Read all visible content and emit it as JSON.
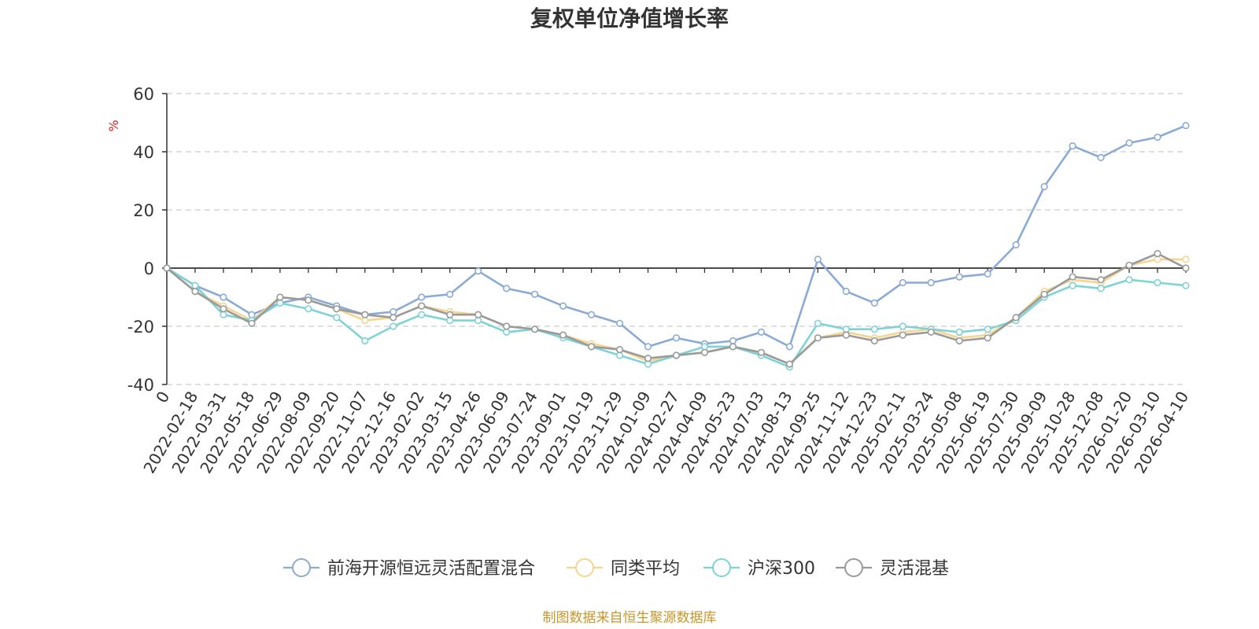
{
  "chart_data": {
    "type": "line",
    "title": "复权单位净值增长率",
    "ylabel": "%",
    "ylim": [
      -40,
      60
    ],
    "yticks": [
      -40,
      -20,
      0,
      20,
      40,
      60
    ],
    "grid": true,
    "legend_position": "bottom",
    "source": "制图数据来自恒生聚源数据库",
    "x": [
      "0",
      "2022-02-18",
      "2022-03-31",
      "2022-05-18",
      "2022-06-29",
      "2022-08-09",
      "2022-09-20",
      "2022-11-07",
      "2022-12-16",
      "2023-02-02",
      "2023-03-15",
      "2023-04-26",
      "2023-06-09",
      "2023-07-24",
      "2023-09-01",
      "2023-10-19",
      "2023-11-29",
      "2024-01-09",
      "2024-02-27",
      "2024-04-09",
      "2024-05-23",
      "2024-07-03",
      "2024-08-13",
      "2024-09-25",
      "2024-11-12",
      "2024-12-23",
      "2025-02-11",
      "2025-03-24",
      "2025-05-08",
      "2025-06-19",
      "2025-07-30",
      "2025-09-09",
      "2025-10-28",
      "2025-12-08",
      "2026-01-20",
      "2026-03-10",
      "2026-04-10"
    ],
    "series": [
      {
        "name": "前海开源恒远灵活配置混合",
        "color": "#8aaad8",
        "values": [
          0,
          -6,
          -10,
          -16,
          -12,
          -10,
          -13,
          -16,
          -15,
          -10,
          -9,
          -1,
          -7,
          -9,
          -13,
          -16,
          -19,
          -27,
          -24,
          -26,
          -25,
          -22,
          -27,
          3,
          -8,
          -12,
          -5,
          -5,
          -3,
          -2,
          8,
          28,
          42,
          38,
          43,
          45,
          49
        ]
      },
      {
        "name": "同类平均",
        "color": "#f5d590",
        "values": [
          0,
          -8,
          -13,
          -18,
          -10,
          -11,
          -14,
          -18,
          -17,
          -13,
          -15,
          -16,
          -20,
          -21,
          -23,
          -26,
          -28,
          -32,
          -30,
          -29,
          -27,
          -29,
          -33,
          -24,
          -22,
          -24,
          -22,
          -21,
          -24,
          -23,
          -17,
          -8,
          -4,
          -5,
          1,
          3,
          3
        ]
      },
      {
        "name": "沪深300",
        "color": "#7fd3d6",
        "values": [
          0,
          -6,
          -16,
          -18,
          -12,
          -14,
          -17,
          -25,
          -20,
          -16,
          -18,
          -18,
          -22,
          -21,
          -24,
          -27,
          -30,
          -33,
          -30,
          -27,
          -27,
          -30,
          -34,
          -19,
          -21,
          -21,
          -20,
          -21,
          -22,
          -21,
          -18,
          -10,
          -6,
          -7,
          -4,
          -5,
          -6
        ]
      },
      {
        "name": "灵活混基",
        "color": "#9a9a9a",
        "values": [
          0,
          -8,
          -14,
          -19,
          -10,
          -11,
          -14,
          -16,
          -17,
          -13,
          -16,
          -16,
          -20,
          -21,
          -23,
          -27,
          -28,
          -31,
          -30,
          -29,
          -27,
          -29,
          -33,
          -24,
          -23,
          -25,
          -23,
          -22,
          -25,
          -24,
          -17,
          -9,
          -3,
          -4,
          1,
          5,
          0
        ]
      }
    ]
  }
}
